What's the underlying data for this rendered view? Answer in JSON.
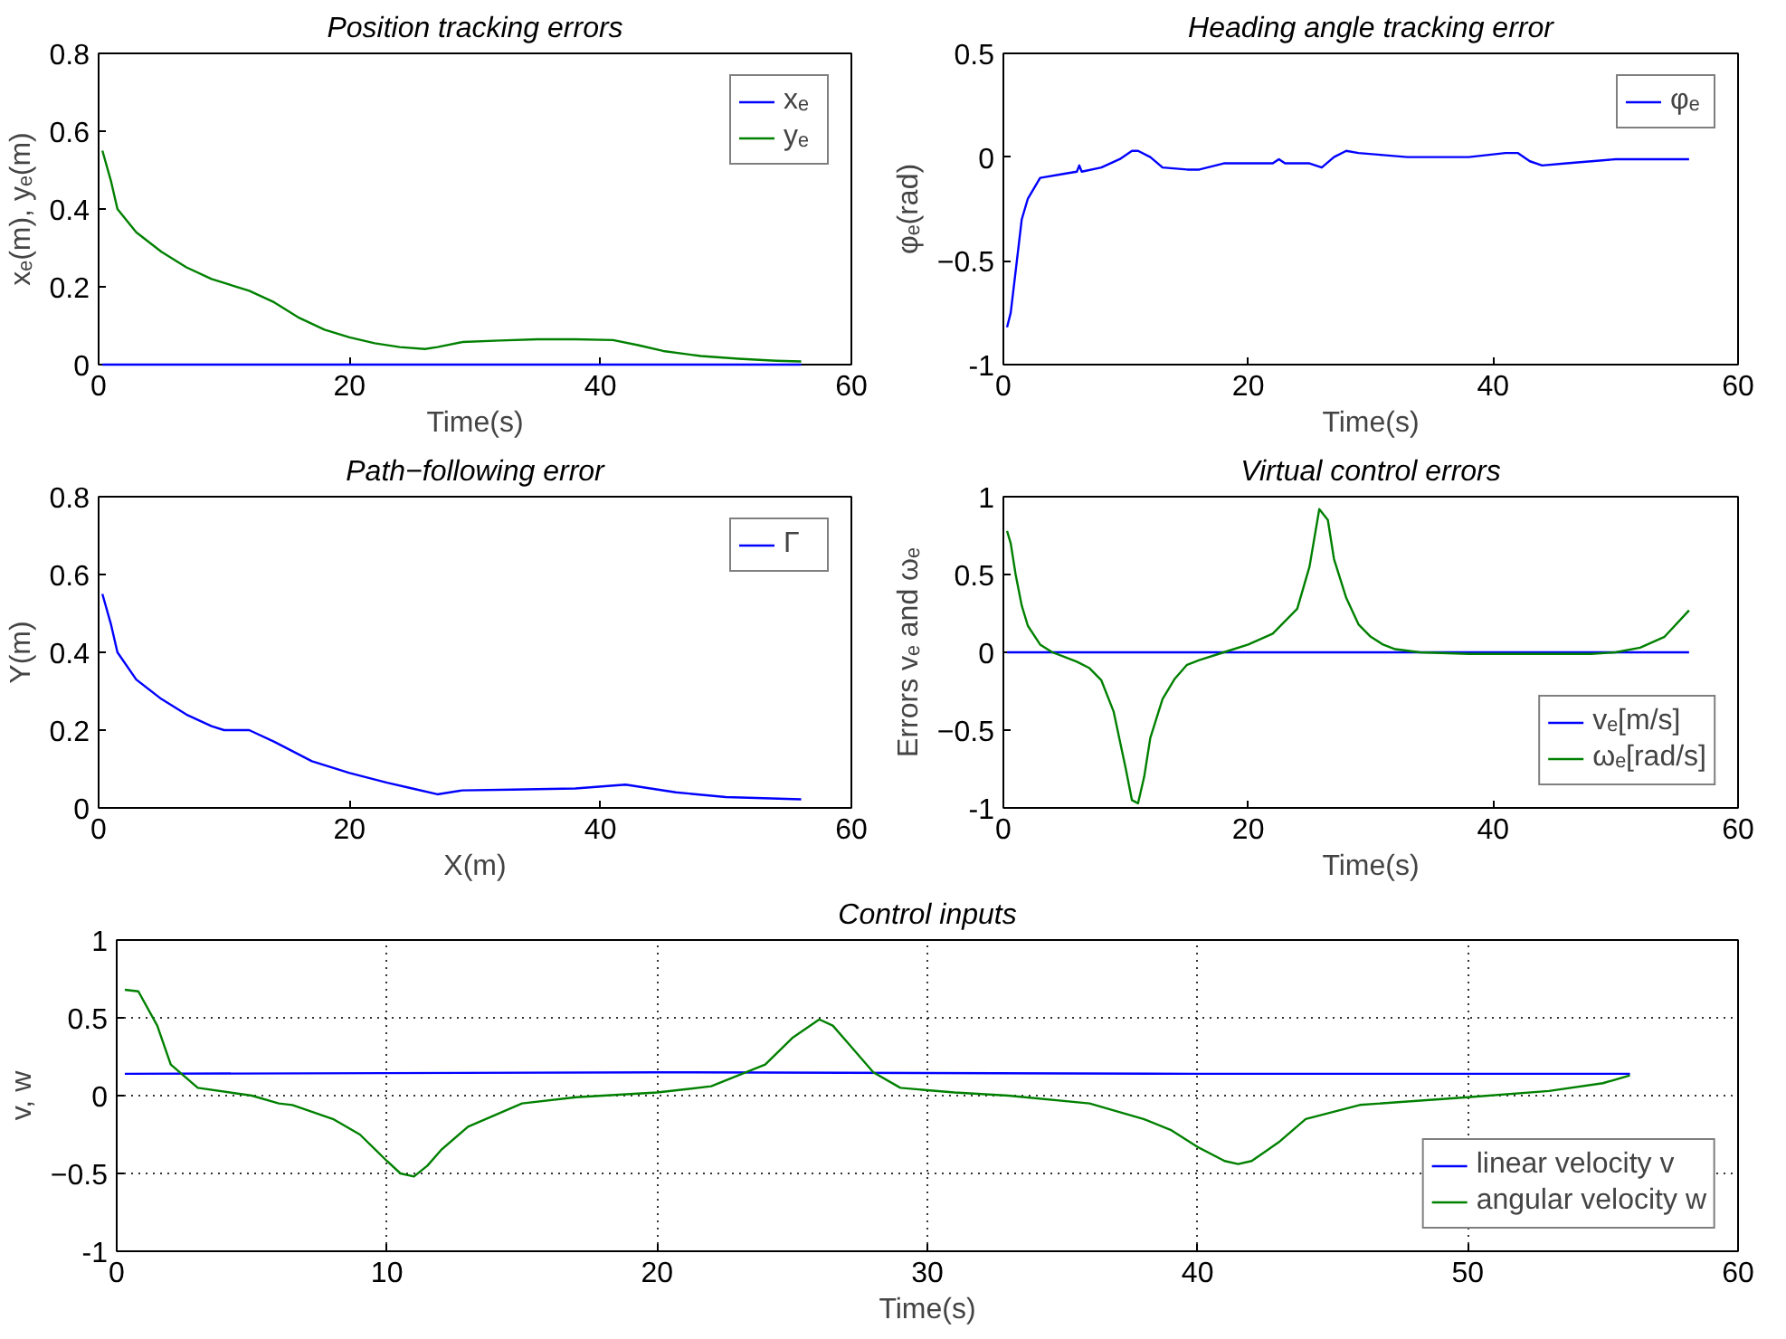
{
  "chart_data": [
    {
      "type": "line",
      "title": "Position tracking errors",
      "xlabel": "Time(s)",
      "ylabel": "xₑ(m), yₑ(m)",
      "xlim": [
        0,
        60
      ],
      "ylim": [
        0,
        0.8
      ],
      "xticks": [
        0,
        20,
        40,
        60
      ],
      "yticks": [
        0,
        0.2,
        0.4,
        0.6,
        0.8
      ],
      "legend": "top right",
      "grid": false,
      "series": [
        {
          "name": "xₑ",
          "color": "#0000ff",
          "x": [
            0.3,
            56
          ],
          "values": [
            0,
            0
          ]
        },
        {
          "name": "yₑ",
          "color": "#008000",
          "x": [
            0.3,
            1,
            1.5,
            3,
            5,
            7,
            9,
            12,
            14,
            16,
            18,
            20,
            22,
            24,
            26,
            27,
            29,
            32,
            35,
            38,
            41,
            43,
            45,
            48,
            51,
            54,
            56
          ],
          "values": [
            0.55,
            0.47,
            0.4,
            0.34,
            0.29,
            0.25,
            0.22,
            0.19,
            0.16,
            0.12,
            0.09,
            0.07,
            0.055,
            0.045,
            0.04,
            0.045,
            0.058,
            0.062,
            0.065,
            0.065,
            0.063,
            0.05,
            0.035,
            0.022,
            0.015,
            0.01,
            0.008
          ]
        }
      ]
    },
    {
      "type": "line",
      "title": "Heading angle tracking error",
      "xlabel": "Time(s)",
      "ylabel": "φₑ(rad)",
      "xlim": [
        0,
        60
      ],
      "ylim": [
        -1,
        0.5
      ],
      "xticks": [
        0,
        20,
        40,
        60
      ],
      "yticks": [
        -1,
        -0.5,
        0,
        0.5
      ],
      "legend": "top right",
      "grid": false,
      "series": [
        {
          "name": "φₑ",
          "color": "#0000ff",
          "x": [
            0.3,
            0.6,
            1,
            1.5,
            2,
            3,
            5,
            6,
            6.2,
            6.4,
            8,
            9.5,
            10.5,
            11,
            12,
            13,
            15,
            16,
            18,
            22,
            22.5,
            23,
            25,
            26,
            27,
            28,
            29,
            31,
            33,
            38,
            41,
            42,
            43,
            44,
            46,
            50,
            53,
            56
          ],
          "values": [
            -0.82,
            -0.75,
            -0.55,
            -0.3,
            -0.2,
            -0.1,
            -0.08,
            -0.07,
            -0.04,
            -0.07,
            -0.05,
            -0.01,
            0.03,
            0.03,
            0,
            -0.05,
            -0.06,
            -0.06,
            -0.03,
            -0.03,
            -0.01,
            -0.03,
            -0.03,
            -0.05,
            0,
            0.03,
            0.02,
            0.01,
            0,
            0,
            0.02,
            0.02,
            -0.02,
            -0.04,
            -0.03,
            -0.01,
            -0.01,
            -0.01
          ]
        }
      ]
    },
    {
      "type": "line",
      "title": "Path−following error",
      "xlabel": "X(m)",
      "ylabel": "Y(m)",
      "xlim": [
        0,
        60
      ],
      "ylim": [
        0,
        0.8
      ],
      "xticks": [
        0,
        20,
        40,
        60
      ],
      "yticks": [
        0,
        0.2,
        0.4,
        0.6,
        0.8
      ],
      "legend": "top right",
      "grid": false,
      "series": [
        {
          "name": "Γ",
          "color": "#0000ff",
          "x": [
            0.3,
            1,
            1.5,
            3,
            5,
            7,
            9,
            10,
            12,
            14,
            17,
            20,
            23,
            25,
            27,
            29,
            33,
            38,
            42,
            44,
            46,
            50,
            53,
            56
          ],
          "values": [
            0.55,
            0.47,
            0.4,
            0.33,
            0.28,
            0.24,
            0.21,
            0.2,
            0.2,
            0.17,
            0.12,
            0.09,
            0.065,
            0.05,
            0.035,
            0.045,
            0.047,
            0.05,
            0.06,
            0.05,
            0.04,
            0.028,
            0.025,
            0.022
          ]
        }
      ]
    },
    {
      "type": "line",
      "title": "Virtual control errors",
      "xlabel": "Time(s)",
      "ylabel": "Errors vₑ and ωₑ",
      "xlim": [
        0,
        60
      ],
      "ylim": [
        -1,
        1
      ],
      "xticks": [
        0,
        20,
        40,
        60
      ],
      "yticks": [
        -1,
        -0.5,
        0,
        0.5,
        1
      ],
      "legend": "bottom right",
      "grid": false,
      "series": [
        {
          "name": "vₑ[m/s]",
          "color": "#0000ff",
          "x": [
            0.3,
            56
          ],
          "values": [
            0,
            0
          ]
        },
        {
          "name": "ωₑ[rad/s]",
          "color": "#008000",
          "x": [
            0.3,
            0.6,
            1,
            1.5,
            2,
            3,
            4,
            5,
            6,
            7,
            8,
            9,
            10,
            10.5,
            11,
            11.5,
            12,
            13,
            14,
            15,
            16,
            18,
            20,
            22,
            24,
            25,
            25.8,
            26.5,
            27,
            28,
            29,
            30,
            31,
            32,
            34,
            38,
            45,
            48,
            50,
            52,
            54,
            56
          ],
          "values": [
            0.78,
            0.7,
            0.5,
            0.3,
            0.17,
            0.05,
            0,
            -0.03,
            -0.06,
            -0.1,
            -0.18,
            -0.38,
            -0.75,
            -0.95,
            -0.97,
            -0.8,
            -0.55,
            -0.3,
            -0.17,
            -0.08,
            -0.05,
            0,
            0.05,
            0.12,
            0.28,
            0.55,
            0.92,
            0.85,
            0.6,
            0.35,
            0.18,
            0.1,
            0.05,
            0.02,
            0,
            -0.01,
            -0.01,
            -0.01,
            0,
            0.03,
            0.1,
            0.27
          ]
        }
      ]
    },
    {
      "type": "line",
      "title": "Control inputs",
      "xlabel": "Time(s)",
      "ylabel": "v, w",
      "xlim": [
        0,
        60
      ],
      "ylim": [
        -1,
        1
      ],
      "xticks": [
        0,
        10,
        20,
        30,
        40,
        50,
        60
      ],
      "yticks": [
        -1,
        -0.5,
        0,
        0.5,
        1
      ],
      "legend": "bottom right",
      "grid": true,
      "line_style": "solid",
      "series": [
        {
          "name": "linear velocity v",
          "color": "#0000ff",
          "x": [
            0.3,
            20,
            40,
            56
          ],
          "values": [
            0.14,
            0.15,
            0.14,
            0.14
          ]
        },
        {
          "name": "angular velocity w",
          "color": "#008000",
          "x": [
            0.3,
            0.8,
            1.5,
            2,
            3,
            5,
            6,
            6.5,
            8,
            9,
            10,
            10.5,
            11,
            11.5,
            12,
            13,
            15,
            17,
            20,
            22,
            24,
            25,
            26,
            26.5,
            27,
            28,
            29,
            31,
            33,
            36,
            38,
            39,
            40,
            41,
            41.5,
            42,
            43,
            44,
            46,
            50,
            53,
            55,
            56
          ],
          "values": [
            0.68,
            0.67,
            0.45,
            0.2,
            0.05,
            0,
            -0.05,
            -0.06,
            -0.15,
            -0.25,
            -0.42,
            -0.5,
            -0.52,
            -0.45,
            -0.35,
            -0.2,
            -0.05,
            -0.01,
            0.02,
            0.06,
            0.2,
            0.37,
            0.49,
            0.45,
            0.35,
            0.15,
            0.05,
            0.02,
            0,
            -0.05,
            -0.15,
            -0.22,
            -0.33,
            -0.42,
            -0.44,
            -0.42,
            -0.3,
            -0.15,
            -0.06,
            -0.01,
            0.03,
            0.08,
            0.13
          ]
        }
      ]
    }
  ]
}
